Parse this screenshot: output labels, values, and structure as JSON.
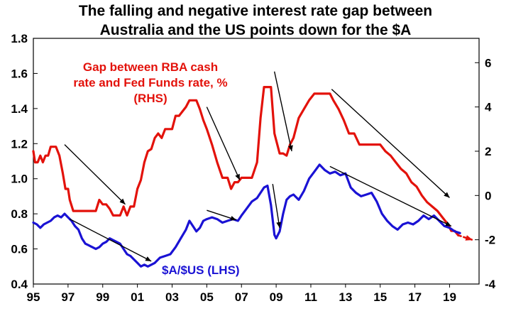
{
  "chart_data": {
    "type": "line",
    "title_lines": [
      "The falling and negative interest rate gap between",
      "Australia and the US points down for the $A"
    ],
    "x_ticks": [
      "95",
      "97",
      "99",
      "01",
      "03",
      "05",
      "07",
      "09",
      "11",
      "13",
      "15",
      "17",
      "19"
    ],
    "x_tick_years": [
      1995,
      1997,
      1999,
      2001,
      2003,
      2005,
      2007,
      2009,
      2011,
      2013,
      2015,
      2017,
      2019
    ],
    "xlim": [
      1995,
      2020.7
    ],
    "left_axis": {
      "ylim": [
        0.4,
        1.8
      ],
      "ticks": [
        "0.4",
        "0.6",
        "0.8",
        "1.0",
        "1.2",
        "1.4",
        "1.6",
        "1.8"
      ]
    },
    "right_axis": {
      "ylim": [
        -4,
        7.1
      ],
      "ticks": [
        "-4",
        "-2",
        "0",
        "2",
        "4",
        "6"
      ]
    },
    "grid": false,
    "colors": {
      "rate_gap": "#e3120b",
      "aud_usd": "#1a12d4",
      "trend_arrows": "#000000"
    },
    "annotations": {
      "rate_gap": [
        "Gap between RBA cash",
        "rate and Fed Funds rate, %",
        "(RHS)"
      ],
      "aud_usd": "$A/$US  (LHS)"
    },
    "series": [
      {
        "name": "Gap between RBA cash rate and Fed Funds rate, % (RHS)",
        "axis": "right",
        "x": [
          1995.0,
          1995.1,
          1995.25,
          1995.4,
          1995.55,
          1995.7,
          1995.85,
          1996.0,
          1996.15,
          1996.3,
          1996.5,
          1996.7,
          1996.85,
          1997.0,
          1997.1,
          1997.3,
          1997.5,
          1997.7,
          1997.9,
          1998.2,
          1998.6,
          1998.8,
          1999.0,
          1999.2,
          1999.4,
          1999.6,
          1999.8,
          2000.0,
          2000.2,
          2000.4,
          2000.6,
          2000.8,
          2001.0,
          2001.2,
          2001.4,
          2001.6,
          2001.8,
          2002.0,
          2002.2,
          2002.4,
          2002.6,
          2002.8,
          2003.0,
          2003.2,
          2003.4,
          2003.6,
          2003.8,
          2004.0,
          2004.2,
          2004.4,
          2004.6,
          2004.8,
          2005.0,
          2005.3,
          2005.6,
          2005.9,
          2006.2,
          2006.4,
          2006.6,
          2006.8,
          2007.0,
          2007.3,
          2007.6,
          2007.9,
          2008.1,
          2008.3,
          2008.5,
          2008.7,
          2008.9,
          2009.0,
          2009.2,
          2009.4,
          2009.6,
          2009.8,
          2010.0,
          2010.3,
          2010.6,
          2010.9,
          2011.2,
          2011.5,
          2011.8,
          2012.1,
          2012.3,
          2012.6,
          2012.9,
          2013.2,
          2013.5,
          2013.8,
          2014.2,
          2014.6,
          2015.0,
          2015.3,
          2015.6,
          2015.9,
          2016.2,
          2016.5,
          2016.8,
          2017.1,
          2017.4,
          2017.7,
          2018.0,
          2018.3,
          2018.6,
          2018.9,
          2019.1,
          2019.3,
          2019.5
        ],
        "y": [
          2.0,
          1.5,
          1.5,
          1.8,
          1.5,
          1.8,
          1.8,
          2.2,
          2.2,
          2.2,
          1.8,
          1.0,
          0.3,
          0.3,
          -0.2,
          -0.7,
          -0.7,
          -0.7,
          -0.7,
          -0.7,
          -0.7,
          -0.2,
          -0.4,
          -0.4,
          -0.6,
          -0.9,
          -0.9,
          -0.9,
          -0.5,
          -0.9,
          -0.5,
          -0.5,
          0.3,
          0.7,
          1.5,
          2.0,
          2.1,
          2.6,
          2.8,
          2.6,
          3.0,
          3.0,
          3.0,
          3.6,
          3.6,
          3.8,
          4.0,
          4.3,
          4.3,
          4.3,
          3.9,
          3.4,
          3.0,
          2.3,
          1.5,
          0.8,
          0.8,
          0.3,
          0.6,
          0.6,
          0.8,
          0.8,
          0.8,
          1.5,
          3.5,
          4.9,
          4.9,
          4.9,
          2.8,
          2.5,
          1.9,
          1.9,
          1.8,
          2.3,
          2.6,
          3.5,
          3.9,
          4.3,
          4.6,
          4.6,
          4.6,
          4.6,
          4.3,
          3.9,
          3.4,
          2.8,
          2.8,
          2.3,
          2.3,
          2.3,
          2.3,
          2.0,
          1.8,
          1.5,
          1.2,
          1.0,
          0.6,
          0.4,
          0.0,
          -0.3,
          -0.5,
          -0.7,
          -1.0,
          -1.3,
          -1.6,
          -1.6,
          -1.8
        ]
      },
      {
        "name": "Gap projection",
        "axis": "right",
        "dashed": true,
        "x": [
          2019.5,
          2020.3
        ],
        "y": [
          -1.8,
          -2.0
        ]
      },
      {
        "name": "$A/$US (LHS)",
        "axis": "left",
        "x": [
          1995.0,
          1995.2,
          1995.4,
          1995.6,
          1995.8,
          1996.0,
          1996.2,
          1996.4,
          1996.6,
          1996.8,
          1997.0,
          1997.2,
          1997.4,
          1997.6,
          1997.8,
          1998.0,
          1998.2,
          1998.4,
          1998.6,
          1998.8,
          1999.0,
          1999.2,
          1999.4,
          1999.6,
          1999.8,
          2000.0,
          2000.2,
          2000.4,
          2000.6,
          2000.8,
          2001.0,
          2001.2,
          2001.4,
          2001.6,
          2001.8,
          2002.0,
          2002.3,
          2002.6,
          2002.9,
          2003.2,
          2003.5,
          2003.8,
          2004.0,
          2004.2,
          2004.4,
          2004.6,
          2004.8,
          2005.0,
          2005.3,
          2005.6,
          2005.9,
          2006.2,
          2006.5,
          2006.8,
          2007.0,
          2007.3,
          2007.6,
          2007.9,
          2008.1,
          2008.3,
          2008.5,
          2008.7,
          2008.9,
          2009.0,
          2009.2,
          2009.4,
          2009.6,
          2009.8,
          2010.0,
          2010.3,
          2010.6,
          2010.9,
          2011.2,
          2011.5,
          2011.8,
          2012.1,
          2012.4,
          2012.7,
          2013.0,
          2013.3,
          2013.6,
          2013.9,
          2014.2,
          2014.5,
          2014.8,
          2015.1,
          2015.4,
          2015.7,
          2016.0,
          2016.3,
          2016.6,
          2016.9,
          2017.2,
          2017.5,
          2017.8,
          2018.1,
          2018.4,
          2018.7,
          2019.0,
          2019.3,
          2019.6
        ],
        "y": [
          0.75,
          0.74,
          0.72,
          0.74,
          0.75,
          0.76,
          0.78,
          0.79,
          0.78,
          0.8,
          0.78,
          0.76,
          0.73,
          0.71,
          0.66,
          0.63,
          0.62,
          0.61,
          0.6,
          0.61,
          0.63,
          0.64,
          0.66,
          0.65,
          0.64,
          0.63,
          0.6,
          0.57,
          0.56,
          0.54,
          0.52,
          0.5,
          0.51,
          0.5,
          0.51,
          0.52,
          0.55,
          0.56,
          0.57,
          0.61,
          0.66,
          0.71,
          0.76,
          0.73,
          0.7,
          0.72,
          0.76,
          0.77,
          0.78,
          0.77,
          0.75,
          0.76,
          0.77,
          0.76,
          0.79,
          0.83,
          0.87,
          0.89,
          0.92,
          0.95,
          0.96,
          0.85,
          0.68,
          0.66,
          0.7,
          0.8,
          0.88,
          0.9,
          0.91,
          0.88,
          0.93,
          1.0,
          1.04,
          1.08,
          1.05,
          1.03,
          1.04,
          1.02,
          1.03,
          0.95,
          0.92,
          0.9,
          0.91,
          0.92,
          0.87,
          0.8,
          0.76,
          0.73,
          0.71,
          0.74,
          0.75,
          0.74,
          0.76,
          0.79,
          0.77,
          0.79,
          0.76,
          0.73,
          0.72,
          0.7,
          0.69
        ]
      }
    ],
    "trend_arrows": [
      {
        "axis": "right",
        "from": [
          1996.8,
          2.3
        ],
        "to": [
          2000.3,
          -0.4
        ]
      },
      {
        "axis": "right",
        "from": [
          2005.0,
          4.0
        ],
        "to": [
          2006.9,
          0.7
        ]
      },
      {
        "axis": "right",
        "from": [
          2008.9,
          5.6
        ],
        "to": [
          2009.9,
          2.0
        ]
      },
      {
        "axis": "right",
        "from": [
          2012.2,
          4.8
        ],
        "to": [
          2019.0,
          -0.1
        ]
      },
      {
        "axis": "left",
        "from": [
          1997.1,
          0.77
        ],
        "to": [
          2001.8,
          0.53
        ]
      },
      {
        "axis": "left",
        "from": [
          2005.0,
          0.82
        ],
        "to": [
          2006.7,
          0.765
        ]
      },
      {
        "axis": "left",
        "from": [
          2008.8,
          0.97
        ],
        "to": [
          2009.2,
          0.72
        ]
      },
      {
        "axis": "left",
        "from": [
          2012.1,
          1.07
        ],
        "to": [
          2019.1,
          0.73
        ]
      }
    ]
  }
}
